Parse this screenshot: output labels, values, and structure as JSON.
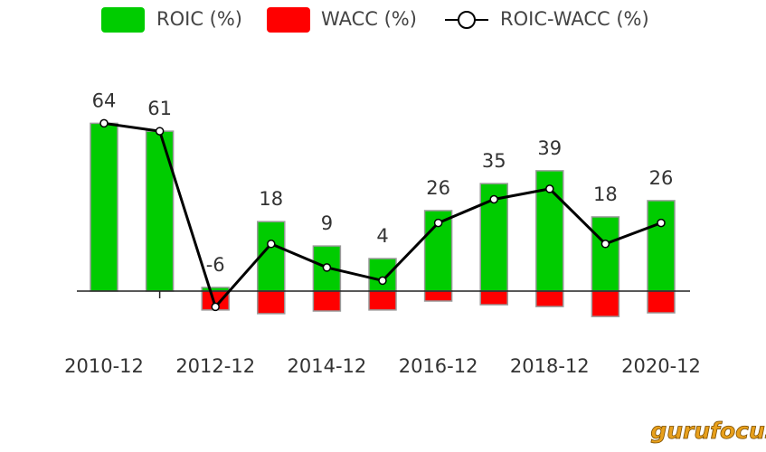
{
  "chart_data": {
    "type": "bar-line",
    "categories": [
      "2010-12",
      null,
      "2012-12",
      null,
      "2014-12",
      null,
      "2016-12",
      null,
      "2018-12",
      null,
      "2020-12"
    ],
    "series": [
      {
        "name": "ROIC (%)",
        "color": "#00cc00",
        "values": [
          64,
          61,
          1.4,
          26.5,
          17.2,
          12.4,
          30.7,
          41,
          45.9,
          28.3,
          34.5
        ]
      },
      {
        "name": "WACC (%)",
        "color": "#ff0000",
        "values": [
          0,
          0,
          7.2,
          8.6,
          7.6,
          7.2,
          3.8,
          5.2,
          5.9,
          9.7,
          8.3
        ]
      },
      {
        "name": "ROIC-WACC (%)",
        "color": "#000000",
        "values": [
          64,
          61,
          -6,
          18,
          9,
          4,
          26,
          35,
          39,
          18,
          26
        ]
      }
    ],
    "ylim": [
      -20,
      75
    ],
    "watermark": "gurufocus"
  }
}
